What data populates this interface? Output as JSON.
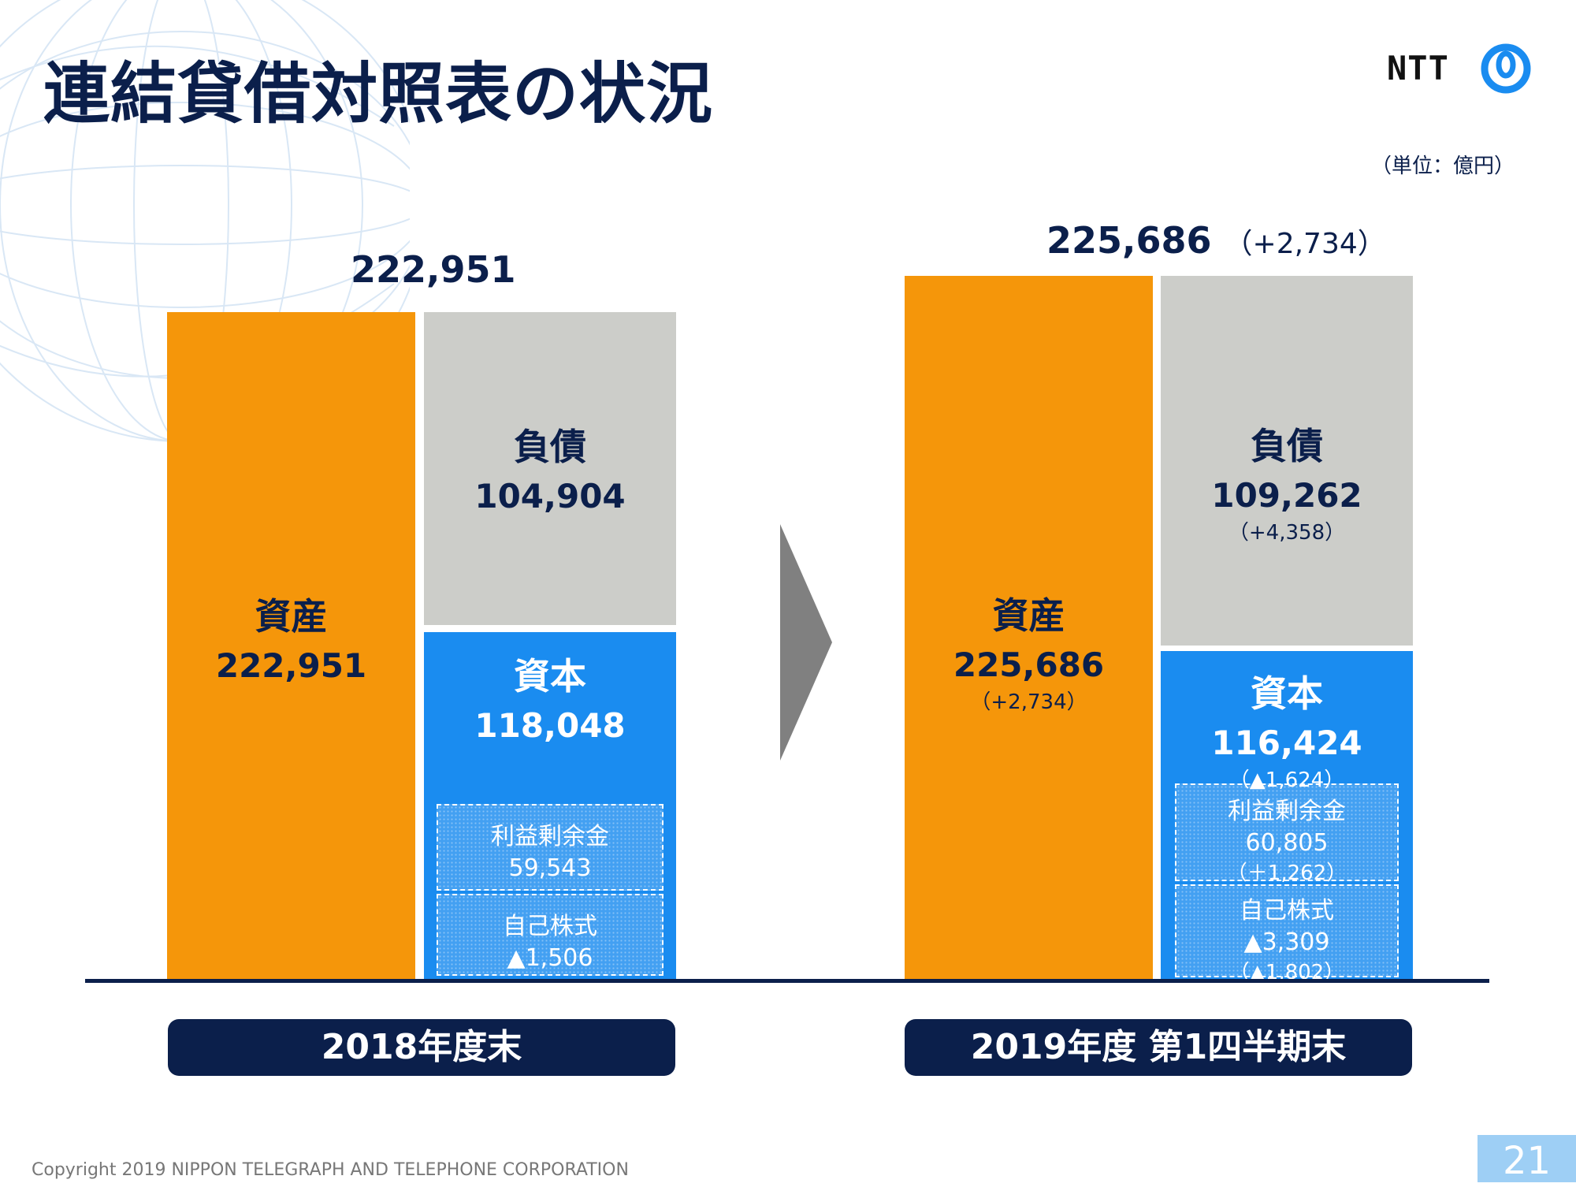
{
  "title": "連結貸借対照表の状況",
  "logo": {
    "text": "NTT"
  },
  "unit": "（単位：億円）",
  "chart_data": {
    "type": "stacked-bar",
    "periods": [
      {
        "label": "2018年度末",
        "total": "222,951",
        "total_delta": "",
        "assets": {
          "label": "資産",
          "value": 222951,
          "value_text": "222,951",
          "delta": ""
        },
        "liabilities": {
          "label": "負債",
          "value": 104904,
          "value_text": "104,904",
          "delta": ""
        },
        "equity": {
          "label": "資本",
          "value": 118048,
          "value_text": "118,048",
          "delta": "",
          "retained_earnings": {
            "label": "利益剰余金",
            "value": 59543,
            "value_text": "59,543",
            "delta": ""
          },
          "treasury_stock": {
            "label": "自己株式",
            "value": -1506,
            "value_text": "▲1,506",
            "delta": ""
          }
        }
      },
      {
        "label": "2019年度 第1四半期末",
        "total": "225,686",
        "total_delta": "（+2,734）",
        "assets": {
          "label": "資産",
          "value": 225686,
          "value_text": "225,686",
          "delta": "（+2,734）"
        },
        "liabilities": {
          "label": "負債",
          "value": 109262,
          "value_text": "109,262",
          "delta": "（+4,358）"
        },
        "equity": {
          "label": "資本",
          "value": 116424,
          "value_text": "116,424",
          "delta": "（▲1,624）",
          "retained_earnings": {
            "label": "利益剰余金",
            "value": 60805,
            "value_text": "60,805",
            "delta": "（＋1,262）"
          },
          "treasury_stock": {
            "label": "自己株式",
            "value": -3309,
            "value_text": "▲3,309",
            "delta": "（▲1,802）"
          }
        }
      }
    ]
  },
  "footer": {
    "copyright": "Copyright 2019 NIPPON TELEGRAPH AND TELEPHONE CORPORATION",
    "page_number": "21"
  },
  "colors": {
    "assets": "#f5960a",
    "liabilities": "#cccdc9",
    "equity": "#1a8cf0",
    "navy": "#0b1f4b",
    "arrow": "#808080"
  }
}
